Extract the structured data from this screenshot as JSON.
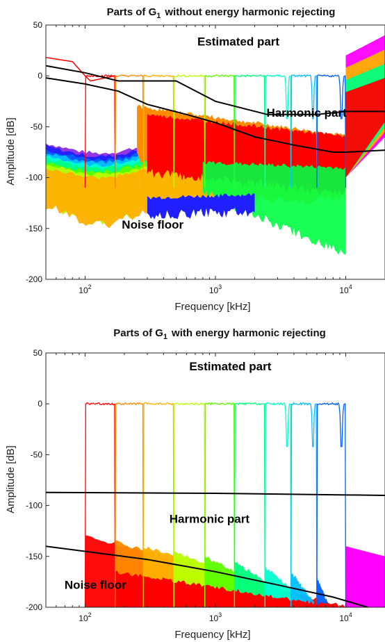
{
  "colors": {
    "background": "#ffffff",
    "axis": "#262626",
    "envelope": "#000000",
    "palette": [
      "#ff0000",
      "#ff8c00",
      "#ffb000",
      "#b8ff00",
      "#5cff00",
      "#00ff7f",
      "#00ffd0",
      "#00c0ff",
      "#0060ff",
      "#2020ff",
      "#8a2be2",
      "#ff00ff"
    ]
  },
  "chart_data": [
    {
      "type": "line",
      "title": "Parts of G",
      "title_sub": "1",
      "title_suffix": "without energy harmonic rejecting",
      "xlabel": "Frequency [kHz]",
      "ylabel": "Amplitude [dB]",
      "xscale": "log",
      "xlim": [
        50,
        20000
      ],
      "ylim": [
        -200,
        50
      ],
      "yticks": [
        50,
        0,
        -50,
        -100,
        -150,
        -200
      ],
      "xticks": [
        {
          "base": "10",
          "exp": "2",
          "value": 100
        },
        {
          "base": "10",
          "exp": "3",
          "value": 1000
        },
        {
          "base": "10",
          "exp": "4",
          "value": 10000
        }
      ],
      "annotations": [
        {
          "text": "Estimated part",
          "x": 1500,
          "y": 30
        },
        {
          "text": "Harmonic part",
          "x": 5000,
          "y": -40
        },
        {
          "text": "Noise floor",
          "x": 330,
          "y": -150
        }
      ],
      "lines": [
        {
          "x": [
            50,
            100,
            180,
            250,
            500,
            1000,
            2500,
            6000,
            10000,
            20000
          ],
          "y": [
            10,
            3,
            -5,
            -5,
            -5,
            -25,
            -38,
            -38,
            -35,
            -35
          ]
        },
        {
          "x": [
            50,
            100,
            180,
            300,
            600,
            1000,
            2000,
            4000,
            8000,
            10000,
            20000
          ],
          "y": [
            -2,
            -8,
            -15,
            -28,
            -38,
            -46,
            -60,
            -68,
            -75,
            -75,
            -73
          ]
        }
      ],
      "bands": [
        {
          "f1": 100,
          "f2": 170,
          "top": 0
        },
        {
          "f1": 170,
          "f2": 280,
          "top": 0
        },
        {
          "f1": 280,
          "f2": 480,
          "top": 0
        },
        {
          "f1": 480,
          "f2": 830,
          "top": 0
        },
        {
          "f1": 830,
          "f2": 1400,
          "top": 0
        },
        {
          "f1": 1400,
          "f2": 2400,
          "top": 0
        },
        {
          "f1": 2400,
          "f2": 3800,
          "top": 0
        },
        {
          "f1": 3800,
          "f2": 6000,
          "top": 0
        },
        {
          "f1": 6000,
          "f2": 10000,
          "top": 0
        }
      ]
    },
    {
      "type": "line",
      "title": "Parts of G",
      "title_sub": "1",
      "title_suffix": "with energy harmonic rejecting",
      "xlabel": "Frequency [kHz]",
      "ylabel": "Amplitude [dB]",
      "xscale": "log",
      "xlim": [
        50,
        20000
      ],
      "ylim": [
        -200,
        50
      ],
      "yticks": [
        50,
        0,
        -50,
        -100,
        -150,
        -200
      ],
      "xticks": [
        {
          "base": "10",
          "exp": "2",
          "value": 100
        },
        {
          "base": "10",
          "exp": "3",
          "value": 1000
        },
        {
          "base": "10",
          "exp": "4",
          "value": 10000
        }
      ],
      "annotations": [
        {
          "text": "Estimated part",
          "x": 1300,
          "y": 33
        },
        {
          "text": "Harmonic part",
          "x": 900,
          "y": -117
        },
        {
          "text": "Noise floor",
          "x": 120,
          "y": -182
        }
      ],
      "lines": [
        {
          "x": [
            40,
            1000,
            20000
          ],
          "y": [
            -87,
            -88,
            -90
          ]
        },
        {
          "x": [
            50,
            300,
            1000,
            3000,
            8000,
            20000
          ],
          "y": [
            -140,
            -153,
            -165,
            -178,
            -190,
            -205
          ]
        }
      ],
      "bands": [
        {
          "f1": 100,
          "f2": 170,
          "top": 0
        },
        {
          "f1": 170,
          "f2": 280,
          "top": 0
        },
        {
          "f1": 280,
          "f2": 480,
          "top": 0
        },
        {
          "f1": 480,
          "f2": 830,
          "top": 0
        },
        {
          "f1": 830,
          "f2": 1400,
          "top": 0
        },
        {
          "f1": 1400,
          "f2": 2400,
          "top": 0
        },
        {
          "f1": 2400,
          "f2": 3800,
          "top": 0
        },
        {
          "f1": 3800,
          "f2": 6000,
          "top": 0
        },
        {
          "f1": 6000,
          "f2": 10000,
          "top": 0
        }
      ]
    }
  ]
}
